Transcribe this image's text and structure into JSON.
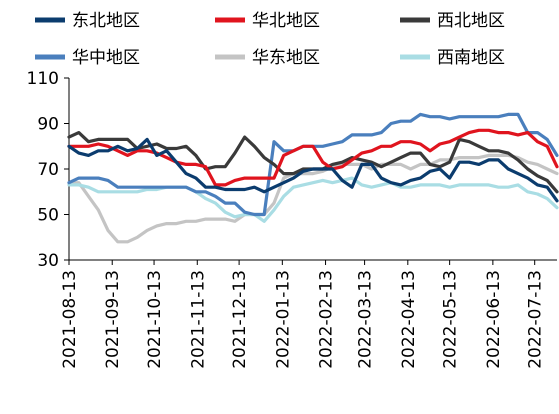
{
  "chart_data": {
    "type": "line",
    "ylim": [
      30,
      110
    ],
    "yticks": [
      30,
      50,
      70,
      90,
      110
    ],
    "grid": false,
    "legend_position": "top",
    "x_start": "2021-08-13",
    "x_end": "2022-07-29",
    "xticks": [
      "2021-08-13",
      "2021-09-13",
      "2021-10-13",
      "2021-11-13",
      "2021-12-13",
      "2022-01-13",
      "2022-02-13",
      "2022-03-13",
      "2022-04-13",
      "2022-05-13",
      "2022-06-13",
      "2022-07-13"
    ],
    "x": [
      "2021-08-13",
      "2021-08-20",
      "2021-08-27",
      "2021-09-03",
      "2021-09-10",
      "2021-09-17",
      "2021-09-24",
      "2021-10-01",
      "2021-10-08",
      "2021-10-15",
      "2021-10-22",
      "2021-10-29",
      "2021-11-05",
      "2021-11-12",
      "2021-11-19",
      "2021-11-26",
      "2021-12-03",
      "2021-12-10",
      "2021-12-17",
      "2021-12-24",
      "2021-12-31",
      "2022-01-07",
      "2022-01-14",
      "2022-01-21",
      "2022-01-28",
      "2022-02-04",
      "2022-02-11",
      "2022-02-18",
      "2022-02-25",
      "2022-03-04",
      "2022-03-11",
      "2022-03-18",
      "2022-03-25",
      "2022-04-01",
      "2022-04-08",
      "2022-04-15",
      "2022-04-22",
      "2022-04-29",
      "2022-05-06",
      "2022-05-13",
      "2022-05-20",
      "2022-05-27",
      "2022-06-03",
      "2022-06-10",
      "2022-06-17",
      "2022-06-24",
      "2022-07-01",
      "2022-07-08",
      "2022-07-15",
      "2022-07-22",
      "2022-07-29"
    ],
    "series": [
      {
        "name": "东北地区",
        "color": "#0b3c6e",
        "values": [
          80,
          77,
          76,
          78,
          78,
          80,
          78,
          79,
          83,
          76,
          78,
          73,
          68,
          66,
          62,
          62,
          61,
          61,
          61,
          62,
          60,
          62,
          64,
          66,
          69,
          70,
          70,
          70,
          65,
          62,
          72,
          72,
          66,
          64,
          63,
          65,
          66,
          69,
          70,
          66,
          73,
          73,
          72,
          74,
          74,
          70,
          68,
          66,
          63,
          62,
          56
        ]
      },
      {
        "name": "华北地区",
        "color": "#e0141e",
        "values": [
          80,
          80,
          80,
          81,
          80,
          78,
          76,
          78,
          78,
          77,
          75,
          73,
          72,
          72,
          71,
          63,
          63,
          65,
          66,
          66,
          66,
          66,
          76,
          78,
          80,
          80,
          73,
          70,
          71,
          74,
          77,
          78,
          80,
          80,
          82,
          82,
          81,
          78,
          81,
          82,
          84,
          86,
          87,
          87,
          86,
          86,
          85,
          86,
          82,
          80,
          71
        ]
      },
      {
        "name": "西北地区",
        "color": "#3a3a3a",
        "values": [
          84,
          86,
          82,
          83,
          83,
          83,
          83,
          79,
          80,
          81,
          79,
          79,
          80,
          76,
          70,
          71,
          71,
          77,
          84,
          80,
          75,
          72,
          68,
          68,
          70,
          70,
          70,
          72,
          73,
          75,
          74,
          73,
          71,
          73,
          75,
          77,
          77,
          72,
          71,
          73,
          83,
          82,
          80,
          78,
          78,
          77,
          74,
          70,
          67,
          65,
          60
        ]
      },
      {
        "name": "华中地区",
        "color": "#4a7fbd",
        "values": [
          64,
          66,
          66,
          66,
          65,
          62,
          62,
          62,
          62,
          62,
          62,
          62,
          62,
          60,
          60,
          58,
          55,
          55,
          51,
          50,
          50,
          82,
          78,
          78,
          80,
          80,
          80,
          81,
          82,
          85,
          85,
          85,
          86,
          90,
          91,
          91,
          94,
          93,
          93,
          92,
          93,
          93,
          93,
          93,
          93,
          94,
          94,
          86,
          86,
          83,
          76
        ]
      },
      {
        "name": "华东地区",
        "color": "#c4c4c4",
        "values": [
          64,
          64,
          58,
          52,
          43,
          38,
          38,
          40,
          43,
          45,
          46,
          46,
          47,
          47,
          48,
          48,
          48,
          47,
          50,
          50,
          50,
          55,
          66,
          68,
          68,
          68,
          69,
          71,
          72,
          72,
          72,
          70,
          72,
          72,
          72,
          70,
          72,
          72,
          74,
          74,
          75,
          75,
          75,
          76,
          76,
          76,
          75,
          73,
          72,
          70,
          68
        ]
      },
      {
        "name": "西南地区",
        "color": "#a9dde4",
        "values": [
          63,
          63,
          62,
          60,
          60,
          60,
          60,
          60,
          61,
          61,
          62,
          62,
          62,
          60,
          57,
          55,
          51,
          49,
          50,
          50,
          47,
          52,
          58,
          62,
          63,
          64,
          65,
          64,
          65,
          66,
          63,
          62,
          63,
          64,
          62,
          62,
          63,
          63,
          63,
          62,
          63,
          63,
          63,
          63,
          62,
          62,
          63,
          60,
          59,
          57,
          53
        ]
      }
    ]
  }
}
